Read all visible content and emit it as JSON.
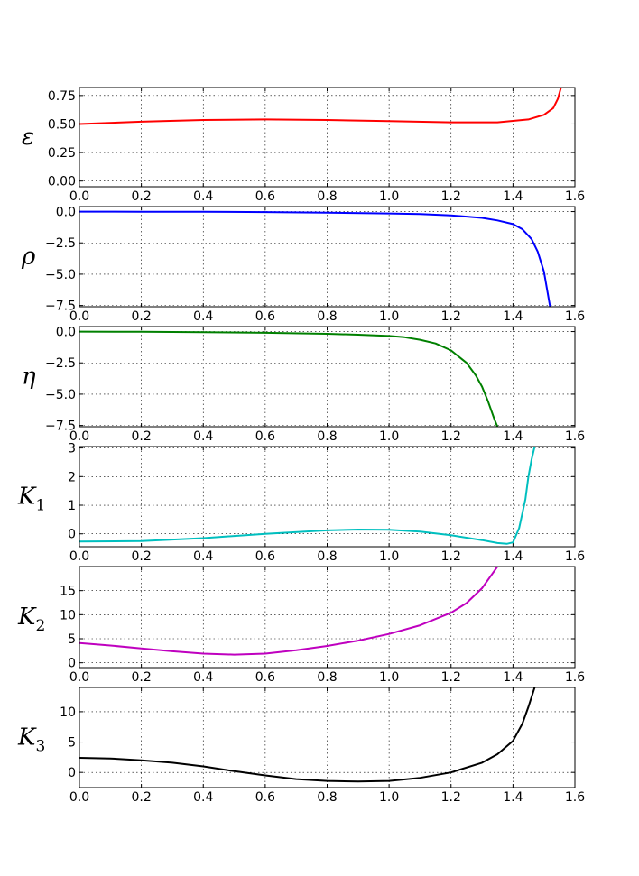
{
  "chart_data": [
    {
      "type": "line",
      "ylabel": "ε",
      "ylabel_sub": "",
      "xlim": [
        0,
        1.6
      ],
      "ylim": [
        -0.05,
        0.82
      ],
      "x_ticks": [
        "0.0",
        "0.2",
        "0.4",
        "0.6",
        "0.8",
        "1.0",
        "1.2",
        "1.4",
        "1.6"
      ],
      "y_ticks": [
        "0.00",
        "0.25",
        "0.50",
        "0.75"
      ],
      "y_tick_values": [
        0,
        0.25,
        0.5,
        0.75
      ],
      "grid": true,
      "series": [
        {
          "color": "#ff0000",
          "x": [
            0.0,
            0.2,
            0.4,
            0.6,
            0.8,
            1.0,
            1.2,
            1.35,
            1.45,
            1.5,
            1.53,
            1.545,
            1.555
          ],
          "y": [
            0.5,
            0.52,
            0.535,
            0.54,
            0.535,
            0.525,
            0.515,
            0.515,
            0.54,
            0.58,
            0.64,
            0.72,
            0.82
          ]
        }
      ]
    },
    {
      "type": "line",
      "ylabel": "ρ",
      "ylabel_sub": "",
      "xlim": [
        0,
        1.6
      ],
      "ylim": [
        -7.6,
        0.4
      ],
      "x_ticks": [
        "0.0",
        "0.2",
        "0.4",
        "0.6",
        "0.8",
        "1.0",
        "1.2",
        "1.4",
        "1.6"
      ],
      "y_ticks": [
        "0.0",
        "−2.5",
        "−5.0",
        "−7.5"
      ],
      "y_tick_values": [
        0,
        -2.5,
        -5.0,
        -7.5
      ],
      "grid": true,
      "series": [
        {
          "color": "#0000ff",
          "x": [
            0.0,
            0.2,
            0.4,
            0.6,
            0.8,
            1.0,
            1.1,
            1.2,
            1.3,
            1.35,
            1.4,
            1.43,
            1.46,
            1.48,
            1.5,
            1.51,
            1.52
          ],
          "y": [
            0.0,
            -0.01,
            -0.02,
            -0.04,
            -0.08,
            -0.15,
            -0.2,
            -0.3,
            -0.5,
            -0.7,
            -1.0,
            -1.4,
            -2.2,
            -3.2,
            -4.8,
            -6.2,
            -7.6
          ]
        }
      ]
    },
    {
      "type": "line",
      "ylabel": "η",
      "ylabel_sub": "",
      "xlim": [
        0,
        1.6
      ],
      "ylim": [
        -7.6,
        0.4
      ],
      "x_ticks": [
        "0.0",
        "0.2",
        "0.4",
        "0.6",
        "0.8",
        "1.0",
        "1.2",
        "1.4",
        "1.6"
      ],
      "y_ticks": [
        "0.0",
        "−2.5",
        "−5.0",
        "−7.5"
      ],
      "y_tick_values": [
        0,
        -2.5,
        -5.0,
        -7.5
      ],
      "grid": true,
      "series": [
        {
          "color": "#008000",
          "x": [
            0.0,
            0.2,
            0.4,
            0.6,
            0.8,
            0.9,
            1.0,
            1.05,
            1.1,
            1.15,
            1.2,
            1.25,
            1.28,
            1.3,
            1.32,
            1.34,
            1.35
          ],
          "y": [
            0.0,
            -0.02,
            -0.05,
            -0.1,
            -0.18,
            -0.25,
            -0.35,
            -0.45,
            -0.65,
            -0.95,
            -1.5,
            -2.5,
            -3.5,
            -4.4,
            -5.6,
            -7.0,
            -7.6
          ]
        }
      ]
    },
    {
      "type": "line",
      "ylabel": "K",
      "ylabel_sub": "1",
      "xlim": [
        0,
        1.6
      ],
      "ylim": [
        -0.45,
        3.05
      ],
      "x_ticks": [
        "0.0",
        "0.2",
        "0.4",
        "0.6",
        "0.8",
        "1.0",
        "1.2",
        "1.4",
        "1.6"
      ],
      "y_ticks": [
        "0",
        "1",
        "2",
        "3"
      ],
      "y_tick_values": [
        0,
        1,
        2,
        3
      ],
      "grid": true,
      "series": [
        {
          "color": "#00bfbf",
          "x": [
            0.0,
            0.2,
            0.4,
            0.6,
            0.8,
            0.9,
            1.0,
            1.1,
            1.2,
            1.3,
            1.35,
            1.38,
            1.4,
            1.42,
            1.44,
            1.45,
            1.46,
            1.47
          ],
          "y": [
            -0.27,
            -0.25,
            -0.15,
            0.0,
            0.12,
            0.15,
            0.14,
            0.08,
            -0.05,
            -0.22,
            -0.32,
            -0.35,
            -0.3,
            0.2,
            1.2,
            2.0,
            2.6,
            3.05
          ]
        }
      ]
    },
    {
      "type": "line",
      "ylabel": "K",
      "ylabel_sub": "2",
      "xlim": [
        0,
        1.6
      ],
      "ylim": [
        -1,
        20
      ],
      "x_ticks": [
        "0.0",
        "0.2",
        "0.4",
        "0.6",
        "0.8",
        "1.0",
        "1.2",
        "1.4",
        "1.6"
      ],
      "y_ticks": [
        "0",
        "5",
        "10",
        "15"
      ],
      "y_tick_values": [
        0,
        5,
        10,
        15
      ],
      "grid": true,
      "series": [
        {
          "color": "#bf00bf",
          "x": [
            0.0,
            0.1,
            0.2,
            0.3,
            0.4,
            0.5,
            0.6,
            0.7,
            0.8,
            0.9,
            1.0,
            1.1,
            1.2,
            1.25,
            1.3,
            1.33,
            1.35
          ],
          "y": [
            4.1,
            3.6,
            3.0,
            2.4,
            1.9,
            1.7,
            1.9,
            2.6,
            3.5,
            4.6,
            6.0,
            7.8,
            10.4,
            12.4,
            15.5,
            18.2,
            20.0
          ]
        }
      ]
    },
    {
      "type": "line",
      "ylabel": "K",
      "ylabel_sub": "3",
      "xlim": [
        0,
        1.6
      ],
      "ylim": [
        -2.5,
        14
      ],
      "x_ticks": [
        "0.0",
        "0.2",
        "0.4",
        "0.6",
        "0.8",
        "1.0",
        "1.2",
        "1.4",
        "1.6"
      ],
      "y_ticks": [
        "0",
        "5",
        "10"
      ],
      "y_tick_values": [
        0,
        5,
        10
      ],
      "grid": true,
      "series": [
        {
          "color": "#000000",
          "x": [
            0.0,
            0.1,
            0.2,
            0.3,
            0.4,
            0.5,
            0.6,
            0.7,
            0.8,
            0.9,
            1.0,
            1.1,
            1.2,
            1.3,
            1.35,
            1.4,
            1.43,
            1.45,
            1.47
          ],
          "y": [
            2.4,
            2.3,
            2.0,
            1.6,
            1.0,
            0.2,
            -0.5,
            -1.1,
            -1.4,
            -1.5,
            -1.4,
            -0.9,
            0.0,
            1.6,
            3.0,
            5.2,
            8.0,
            10.8,
            14.0
          ]
        }
      ]
    }
  ]
}
